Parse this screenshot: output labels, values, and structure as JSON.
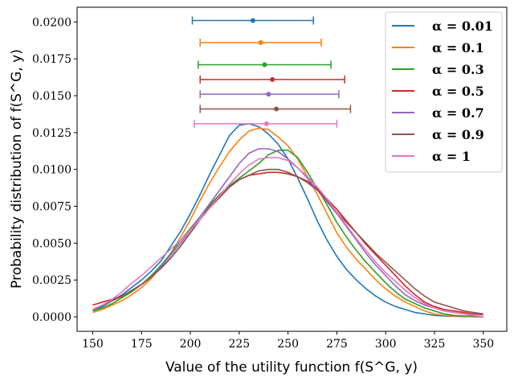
{
  "chart_data": {
    "type": "line",
    "xlabel": "Value of the utility function f(S^G, y)",
    "ylabel": "Probability distribution of f(S^G, y)",
    "xlim": [
      142,
      362
    ],
    "ylim": [
      -0.00098,
      0.021
    ],
    "xticks": [
      150,
      175,
      200,
      225,
      250,
      275,
      300,
      325,
      350
    ],
    "xtick_labels": [
      "150",
      "175",
      "200",
      "225",
      "250",
      "275",
      "300",
      "325",
      "350"
    ],
    "yticks": [
      0.0,
      0.0025,
      0.005,
      0.0075,
      0.01,
      0.0125,
      0.015,
      0.0175,
      0.02
    ],
    "ytick_labels": [
      "0.0000",
      "0.0025",
      "0.0050",
      "0.0075",
      "0.0100",
      "0.0125",
      "0.0150",
      "0.0175",
      "0.0200"
    ],
    "grid": false,
    "legend_position": "top-right",
    "x": [
      150,
      155,
      160,
      165,
      170,
      175,
      180,
      185,
      190,
      195,
      200,
      205,
      210,
      215,
      220,
      225,
      230,
      235,
      240,
      245,
      250,
      255,
      260,
      265,
      270,
      275,
      280,
      285,
      290,
      295,
      300,
      305,
      310,
      315,
      320,
      325,
      330,
      335,
      340,
      345,
      350
    ],
    "series": [
      {
        "name": "α = 0.01",
        "color": "#1f77b4",
        "values": [
          0.0004,
          0.0007,
          0.0011,
          0.0015,
          0.002,
          0.0025,
          0.0031,
          0.0038,
          0.0048,
          0.0058,
          0.007,
          0.0083,
          0.0097,
          0.011,
          0.0123,
          0.013,
          0.0131,
          0.0129,
          0.0124,
          0.0117,
          0.0107,
          0.0094,
          0.008,
          0.0065,
          0.0052,
          0.0041,
          0.0032,
          0.0025,
          0.0019,
          0.0014,
          0.001,
          0.0007,
          0.0005,
          0.0003,
          0.0002,
          0.0001,
          6e-05,
          4e-05,
          2e-05,
          1e-05,
          0.0
        ]
      },
      {
        "name": "α = 0.1",
        "color": "#ff7f0e",
        "values": [
          0.0003,
          0.0005,
          0.0008,
          0.0011,
          0.0015,
          0.002,
          0.0026,
          0.0034,
          0.0043,
          0.0054,
          0.0066,
          0.0079,
          0.0091,
          0.0102,
          0.0112,
          0.012,
          0.0126,
          0.0128,
          0.0127,
          0.0122,
          0.0116,
          0.0107,
          0.0095,
          0.0083,
          0.007,
          0.0057,
          0.0047,
          0.0039,
          0.0032,
          0.0025,
          0.0019,
          0.0014,
          0.001,
          0.0007,
          0.0004,
          0.0002,
          0.0001,
          5e-05,
          3e-05,
          1e-05,
          0.0
        ]
      },
      {
        "name": "α = 0.3",
        "color": "#2ca02c",
        "values": [
          0.0004,
          0.0006,
          0.0009,
          0.0013,
          0.0017,
          0.0022,
          0.0028,
          0.0035,
          0.0043,
          0.0052,
          0.006,
          0.0068,
          0.0076,
          0.0083,
          0.0089,
          0.0094,
          0.0099,
          0.0104,
          0.011,
          0.0113,
          0.0113,
          0.0108,
          0.0098,
          0.0087,
          0.0076,
          0.0064,
          0.0054,
          0.0045,
          0.0037,
          0.003,
          0.0023,
          0.0017,
          0.0012,
          0.0009,
          0.0006,
          0.0004,
          0.0002,
          0.0001,
          6e-05,
          3e-05,
          0.0
        ]
      },
      {
        "name": "α = 0.5",
        "color": "#d62728",
        "values": [
          0.0008,
          0.001,
          0.0012,
          0.0014,
          0.0018,
          0.0022,
          0.0027,
          0.0033,
          0.004,
          0.0048,
          0.0057,
          0.0066,
          0.0074,
          0.0081,
          0.0088,
          0.0093,
          0.0096,
          0.0097,
          0.0098,
          0.0098,
          0.0097,
          0.0095,
          0.0092,
          0.0087,
          0.008,
          0.0073,
          0.0065,
          0.0057,
          0.0049,
          0.0042,
          0.0035,
          0.0028,
          0.0021,
          0.0015,
          0.001,
          0.0007,
          0.0005,
          0.0004,
          0.0003,
          0.0002,
          0.00015
        ]
      },
      {
        "name": "α = 0.7",
        "color": "#9467bd",
        "values": [
          0.0005,
          0.0008,
          0.0011,
          0.0014,
          0.0018,
          0.0022,
          0.0027,
          0.0034,
          0.0042,
          0.005,
          0.0059,
          0.0068,
          0.0077,
          0.0086,
          0.0095,
          0.0104,
          0.0111,
          0.0114,
          0.0114,
          0.0112,
          0.0107,
          0.0101,
          0.0094,
          0.0086,
          0.0078,
          0.007,
          0.0061,
          0.0052,
          0.0043,
          0.0035,
          0.0028,
          0.0021,
          0.0015,
          0.0011,
          0.0008,
          0.0006,
          0.0004,
          0.0003,
          0.0002,
          0.0001,
          0.0
        ]
      },
      {
        "name": "α = 0.9",
        "color": "#8c564b",
        "values": [
          0.0005,
          0.0008,
          0.0011,
          0.0014,
          0.0018,
          0.0022,
          0.0027,
          0.0033,
          0.004,
          0.0048,
          0.0057,
          0.0066,
          0.0075,
          0.0082,
          0.0088,
          0.0093,
          0.0096,
          0.0099,
          0.01,
          0.01,
          0.0098,
          0.0095,
          0.0091,
          0.0086,
          0.0079,
          0.0071,
          0.0064,
          0.0057,
          0.005,
          0.0043,
          0.0037,
          0.0031,
          0.0025,
          0.0019,
          0.0014,
          0.001,
          0.0008,
          0.0006,
          0.0004,
          0.0003,
          0.0002
        ]
      },
      {
        "name": "α = 1",
        "color": "#e377c2",
        "values": [
          0.0005,
          0.0008,
          0.0012,
          0.0017,
          0.0023,
          0.0028,
          0.0034,
          0.004,
          0.0046,
          0.0052,
          0.0059,
          0.0066,
          0.0074,
          0.0082,
          0.009,
          0.0097,
          0.0103,
          0.0107,
          0.0108,
          0.0108,
          0.0106,
          0.0101,
          0.0095,
          0.0088,
          0.008,
          0.0071,
          0.0062,
          0.0053,
          0.0045,
          0.0037,
          0.003,
          0.0024,
          0.0018,
          0.0013,
          0.0009,
          0.0006,
          0.0004,
          0.0003,
          0.0002,
          0.0001,
          0.0
        ]
      }
    ],
    "error_bars": [
      {
        "series": "α = 0.01",
        "color": "#1f77b4",
        "y": 0.0201,
        "center": 232,
        "low": 201,
        "high": 263
      },
      {
        "series": "α = 0.1",
        "color": "#ff7f0e",
        "y": 0.0186,
        "center": 236,
        "low": 205,
        "high": 267
      },
      {
        "series": "α = 0.3",
        "color": "#2ca02c",
        "y": 0.0171,
        "center": 238,
        "low": 204,
        "high": 272
      },
      {
        "series": "α = 0.5",
        "color": "#d62728",
        "y": 0.0161,
        "center": 242,
        "low": 205,
        "high": 279
      },
      {
        "series": "α = 0.7",
        "color": "#9467bd",
        "y": 0.0151,
        "center": 240,
        "low": 205,
        "high": 276
      },
      {
        "series": "α = 0.9",
        "color": "#8c564b",
        "y": 0.0141,
        "center": 244,
        "low": 205,
        "high": 282
      },
      {
        "series": "α = 1",
        "color": "#e377c2",
        "y": 0.0131,
        "center": 239,
        "low": 202,
        "high": 275
      }
    ]
  }
}
